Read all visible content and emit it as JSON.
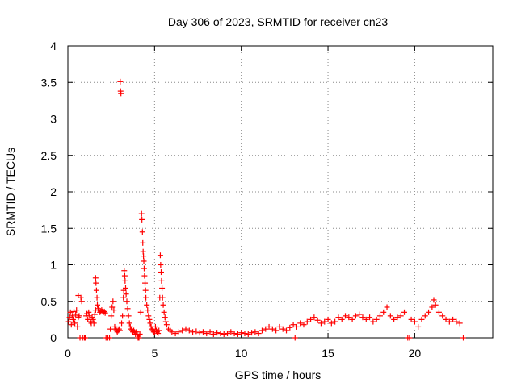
{
  "chart_data": {
    "type": "scatter",
    "title": "Day 306 of 2023, SRMTID for receiver cn23",
    "xlabel": "GPS time / hours",
    "ylabel": "SRMTID / TECUs",
    "xlim": [
      0,
      24.5
    ],
    "ylim": [
      0,
      4
    ],
    "grid": true,
    "grid_style": "dotted",
    "x_ticks": [
      0,
      5,
      10,
      15,
      20
    ],
    "x_tick_labels": [
      "0",
      "5",
      "10",
      "15",
      "20"
    ],
    "y_ticks": [
      0,
      0.5,
      1,
      1.5,
      2,
      2.5,
      3,
      3.5,
      4
    ],
    "y_tick_labels": [
      "0",
      "0.5",
      "1",
      "1.5",
      "2",
      "2.5",
      "3",
      "3.5",
      "4"
    ],
    "marker": "+",
    "marker_color": "#ff0000",
    "series": [
      {
        "name": "cn23",
        "points": [
          [
            0.05,
            0.22
          ],
          [
            0.1,
            0.28
          ],
          [
            0.15,
            0.35
          ],
          [
            0.2,
            0.18
          ],
          [
            0.25,
            0.3
          ],
          [
            0.3,
            0.25
          ],
          [
            0.35,
            0.36
          ],
          [
            0.4,
            0.2
          ],
          [
            0.45,
            0.32
          ],
          [
            0.5,
            0.38
          ],
          [
            0.55,
            0.15
          ],
          [
            0.6,
            0.28
          ],
          [
            0.6,
            0.58
          ],
          [
            0.65,
            0.3
          ],
          [
            0.7,
            0.0
          ],
          [
            0.75,
            0.55
          ],
          [
            0.8,
            0.5
          ],
          [
            0.85,
            0.0
          ],
          [
            0.95,
            0.0
          ],
          [
            1.0,
            0.0
          ],
          [
            1.05,
            0.3
          ],
          [
            1.1,
            0.33
          ],
          [
            1.15,
            0.25
          ],
          [
            1.2,
            0.35
          ],
          [
            1.25,
            0.3
          ],
          [
            1.3,
            0.22
          ],
          [
            1.35,
            0.2
          ],
          [
            1.4,
            0.28
          ],
          [
            1.45,
            0.25
          ],
          [
            1.5,
            0.2
          ],
          [
            1.55,
            0.32
          ],
          [
            1.6,
            0.38
          ],
          [
            1.6,
            0.82
          ],
          [
            1.62,
            0.75
          ],
          [
            1.65,
            0.65
          ],
          [
            1.68,
            0.55
          ],
          [
            1.7,
            0.45
          ],
          [
            1.75,
            0.4
          ],
          [
            1.8,
            0.38
          ],
          [
            1.85,
            0.35
          ],
          [
            1.9,
            0.36
          ],
          [
            1.95,
            0.38
          ],
          [
            2.0,
            0.36
          ],
          [
            2.05,
            0.35
          ],
          [
            2.1,
            0.36
          ],
          [
            2.15,
            0.34
          ],
          [
            2.2,
            0.0
          ],
          [
            2.3,
            0.0
          ],
          [
            2.4,
            0.0
          ],
          [
            2.45,
            0.12
          ],
          [
            2.5,
            0.3
          ],
          [
            2.55,
            0.42
          ],
          [
            2.6,
            0.5
          ],
          [
            2.65,
            0.38
          ],
          [
            2.7,
            0.15
          ],
          [
            2.75,
            0.12
          ],
          [
            2.8,
            0.1
          ],
          [
            2.85,
            0.08
          ],
          [
            2.9,
            0.1
          ],
          [
            2.95,
            0.12
          ],
          [
            3.0,
            0.1
          ],
          [
            3.02,
            3.51
          ],
          [
            3.04,
            3.38
          ],
          [
            3.06,
            3.35
          ],
          [
            3.1,
            0.2
          ],
          [
            3.15,
            0.3
          ],
          [
            3.2,
            0.55
          ],
          [
            3.22,
            0.65
          ],
          [
            3.25,
            0.92
          ],
          [
            3.28,
            0.85
          ],
          [
            3.3,
            0.78
          ],
          [
            3.33,
            0.68
          ],
          [
            3.36,
            0.6
          ],
          [
            3.4,
            0.5
          ],
          [
            3.45,
            0.4
          ],
          [
            3.5,
            0.3
          ],
          [
            3.55,
            0.2
          ],
          [
            3.6,
            0.15
          ],
          [
            3.65,
            0.12
          ],
          [
            3.7,
            0.1
          ],
          [
            3.75,
            0.08
          ],
          [
            3.8,
            0.1
          ],
          [
            3.85,
            0.08
          ],
          [
            3.9,
            0.05
          ],
          [
            3.95,
            0.08
          ],
          [
            4.0,
            0.05
          ],
          [
            4.05,
            0.0
          ],
          [
            4.1,
            0.0
          ],
          [
            4.15,
            0.05
          ],
          [
            4.2,
            0.35
          ],
          [
            4.25,
            1.7
          ],
          [
            4.27,
            1.62
          ],
          [
            4.3,
            1.45
          ],
          [
            4.32,
            1.3
          ],
          [
            4.34,
            1.18
          ],
          [
            4.36,
            1.12
          ],
          [
            4.38,
            1.05
          ],
          [
            4.4,
            0.95
          ],
          [
            4.42,
            0.85
          ],
          [
            4.45,
            0.75
          ],
          [
            4.48,
            0.65
          ],
          [
            4.5,
            0.55
          ],
          [
            4.55,
            0.45
          ],
          [
            4.6,
            0.38
          ],
          [
            4.65,
            0.3
          ],
          [
            4.7,
            0.25
          ],
          [
            4.75,
            0.2
          ],
          [
            4.8,
            0.15
          ],
          [
            4.85,
            0.12
          ],
          [
            4.9,
            0.1
          ],
          [
            4.95,
            0.08
          ],
          [
            5.0,
            0.08
          ],
          [
            5.05,
            0.15
          ],
          [
            5.1,
            0.1
          ],
          [
            5.15,
            0.08
          ],
          [
            5.2,
            0.06
          ],
          [
            5.25,
            0.1
          ],
          [
            5.3,
            0.55
          ],
          [
            5.33,
            1.13
          ],
          [
            5.35,
            1.0
          ],
          [
            5.38,
            0.9
          ],
          [
            5.4,
            0.78
          ],
          [
            5.43,
            0.68
          ],
          [
            5.46,
            0.55
          ],
          [
            5.5,
            0.45
          ],
          [
            5.55,
            0.35
          ],
          [
            5.6,
            0.28
          ],
          [
            5.65,
            0.22
          ],
          [
            5.7,
            0.18
          ],
          [
            5.8,
            0.12
          ],
          [
            5.9,
            0.1
          ],
          [
            6.0,
            0.08
          ],
          [
            6.2,
            0.06
          ],
          [
            6.4,
            0.08
          ],
          [
            6.6,
            0.1
          ],
          [
            6.8,
            0.12
          ],
          [
            7.0,
            0.1
          ],
          [
            7.2,
            0.08
          ],
          [
            7.4,
            0.09
          ],
          [
            7.6,
            0.07
          ],
          [
            7.8,
            0.08
          ],
          [
            8.0,
            0.06
          ],
          [
            8.2,
            0.08
          ],
          [
            8.4,
            0.05
          ],
          [
            8.6,
            0.07
          ],
          [
            8.8,
            0.06
          ],
          [
            9.0,
            0.05
          ],
          [
            9.2,
            0.06
          ],
          [
            9.4,
            0.08
          ],
          [
            9.6,
            0.06
          ],
          [
            9.8,
            0.05
          ],
          [
            10.0,
            0.07
          ],
          [
            10.2,
            0.06
          ],
          [
            10.4,
            0.05
          ],
          [
            10.6,
            0.07
          ],
          [
            10.8,
            0.08
          ],
          [
            11.0,
            0.06
          ],
          [
            11.2,
            0.1
          ],
          [
            11.4,
            0.12
          ],
          [
            11.6,
            0.15
          ],
          [
            11.8,
            0.12
          ],
          [
            12.0,
            0.1
          ],
          [
            12.2,
            0.15
          ],
          [
            12.4,
            0.12
          ],
          [
            12.6,
            0.1
          ],
          [
            12.8,
            0.14
          ],
          [
            13.0,
            0.18
          ],
          [
            13.1,
            0.0
          ],
          [
            13.2,
            0.15
          ],
          [
            13.4,
            0.2
          ],
          [
            13.6,
            0.18
          ],
          [
            13.8,
            0.22
          ],
          [
            14.0,
            0.25
          ],
          [
            14.2,
            0.28
          ],
          [
            14.4,
            0.24
          ],
          [
            14.6,
            0.2
          ],
          [
            14.8,
            0.22
          ],
          [
            15.0,
            0.25
          ],
          [
            15.2,
            0.2
          ],
          [
            15.4,
            0.22
          ],
          [
            15.6,
            0.28
          ],
          [
            15.8,
            0.25
          ],
          [
            16.0,
            0.3
          ],
          [
            16.2,
            0.28
          ],
          [
            16.4,
            0.25
          ],
          [
            16.6,
            0.3
          ],
          [
            16.8,
            0.32
          ],
          [
            17.0,
            0.28
          ],
          [
            17.2,
            0.25
          ],
          [
            17.4,
            0.28
          ],
          [
            17.6,
            0.22
          ],
          [
            17.8,
            0.25
          ],
          [
            18.0,
            0.3
          ],
          [
            18.2,
            0.35
          ],
          [
            18.4,
            0.42
          ],
          [
            18.6,
            0.3
          ],
          [
            18.8,
            0.25
          ],
          [
            19.0,
            0.28
          ],
          [
            19.2,
            0.3
          ],
          [
            19.4,
            0.35
          ],
          [
            19.6,
            0.0
          ],
          [
            19.7,
            0.0
          ],
          [
            19.8,
            0.25
          ],
          [
            20.0,
            0.22
          ],
          [
            20.2,
            0.15
          ],
          [
            20.4,
            0.25
          ],
          [
            20.6,
            0.3
          ],
          [
            20.8,
            0.35
          ],
          [
            21.0,
            0.42
          ],
          [
            21.1,
            0.52
          ],
          [
            21.2,
            0.45
          ],
          [
            21.4,
            0.35
          ],
          [
            21.6,
            0.3
          ],
          [
            21.8,
            0.25
          ],
          [
            22.0,
            0.22
          ],
          [
            22.2,
            0.25
          ],
          [
            22.4,
            0.22
          ],
          [
            22.6,
            0.2
          ],
          [
            22.8,
            0.0
          ]
        ]
      }
    ]
  }
}
